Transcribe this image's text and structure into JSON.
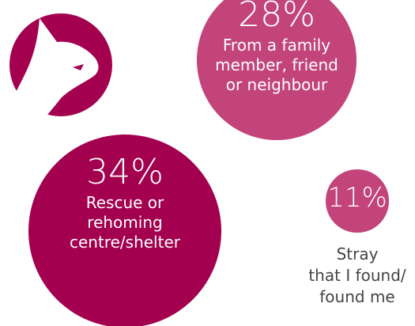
{
  "chart_data": {
    "type": "bubble",
    "categories": [
      "From a family\nmember, friend\nor neighbour",
      "Rescue or\nrehoming\ncentre/shelter",
      "Stray\nthat I found/\nfound me"
    ],
    "values": [
      28,
      34,
      11
    ],
    "value_labels": [
      "28%",
      "34%",
      "11%"
    ],
    "colors": [
      "#c2447a",
      "#a3004f",
      "#c2447a"
    ]
  }
}
